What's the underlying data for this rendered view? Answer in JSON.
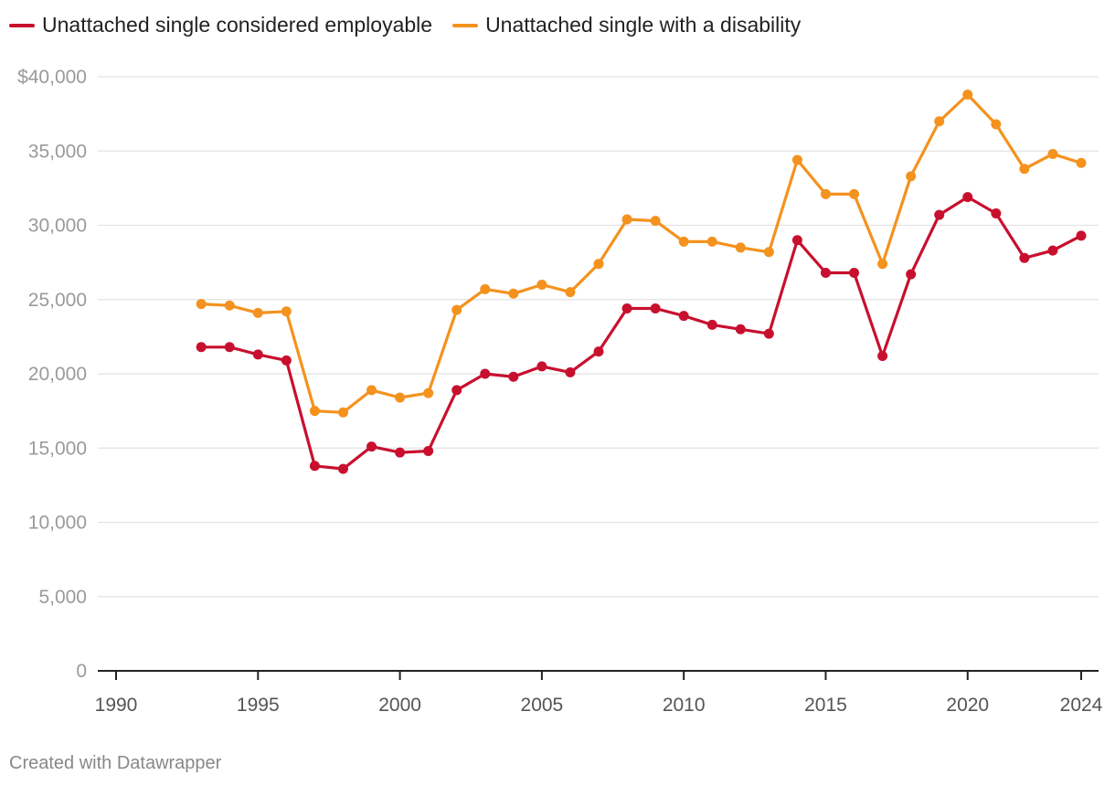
{
  "chart_data": {
    "type": "line",
    "title": "",
    "xlabel": "",
    "ylabel": "",
    "xlim": [
      1990,
      2024
    ],
    "ylim": [
      0,
      40000
    ],
    "grid": true,
    "legend_position": "top-left",
    "x_ticks": [
      1990,
      1995,
      2000,
      2005,
      2010,
      2015,
      2020,
      2024
    ],
    "x_tick_labels": [
      "1990",
      "1995",
      "2000",
      "2005",
      "2010",
      "2015",
      "2020",
      "2024"
    ],
    "y_ticks": [
      0,
      5000,
      10000,
      15000,
      20000,
      25000,
      30000,
      35000,
      40000
    ],
    "y_tick_labels": [
      "0",
      "5,000",
      "10,000",
      "15,000",
      "20,000",
      "25,000",
      "30,000",
      "35,000",
      "$40,000"
    ],
    "x": [
      1993,
      1994,
      1995,
      1996,
      1997,
      1998,
      1999,
      2000,
      2001,
      2002,
      2003,
      2004,
      2005,
      2006,
      2007,
      2008,
      2009,
      2010,
      2011,
      2012,
      2013,
      2014,
      2015,
      2016,
      2017,
      2018,
      2019,
      2020,
      2021,
      2022,
      2023,
      2024
    ],
    "series": [
      {
        "name": "Unattached single considered employable",
        "color": "#c8102e",
        "values": [
          21800,
          21800,
          21300,
          20900,
          13800,
          13600,
          15100,
          14700,
          14800,
          18900,
          20000,
          19800,
          20500,
          20100,
          21500,
          24400,
          24400,
          23900,
          23300,
          23000,
          22700,
          29000,
          26800,
          26800,
          21200,
          26700,
          30700,
          31900,
          30800,
          27800,
          28300,
          29300
        ]
      },
      {
        "name": "Unattached single with a disability",
        "color": "#f4921e",
        "values": [
          24700,
          24600,
          24100,
          24200,
          17500,
          17400,
          18900,
          18400,
          18700,
          24300,
          25700,
          25400,
          26000,
          25500,
          27400,
          30400,
          30300,
          28900,
          28900,
          28500,
          28200,
          34400,
          32100,
          32100,
          27400,
          33300,
          37000,
          38800,
          36800,
          33800,
          34800,
          34200
        ]
      }
    ]
  },
  "footer": {
    "credit": "Created with Datawrapper"
  }
}
